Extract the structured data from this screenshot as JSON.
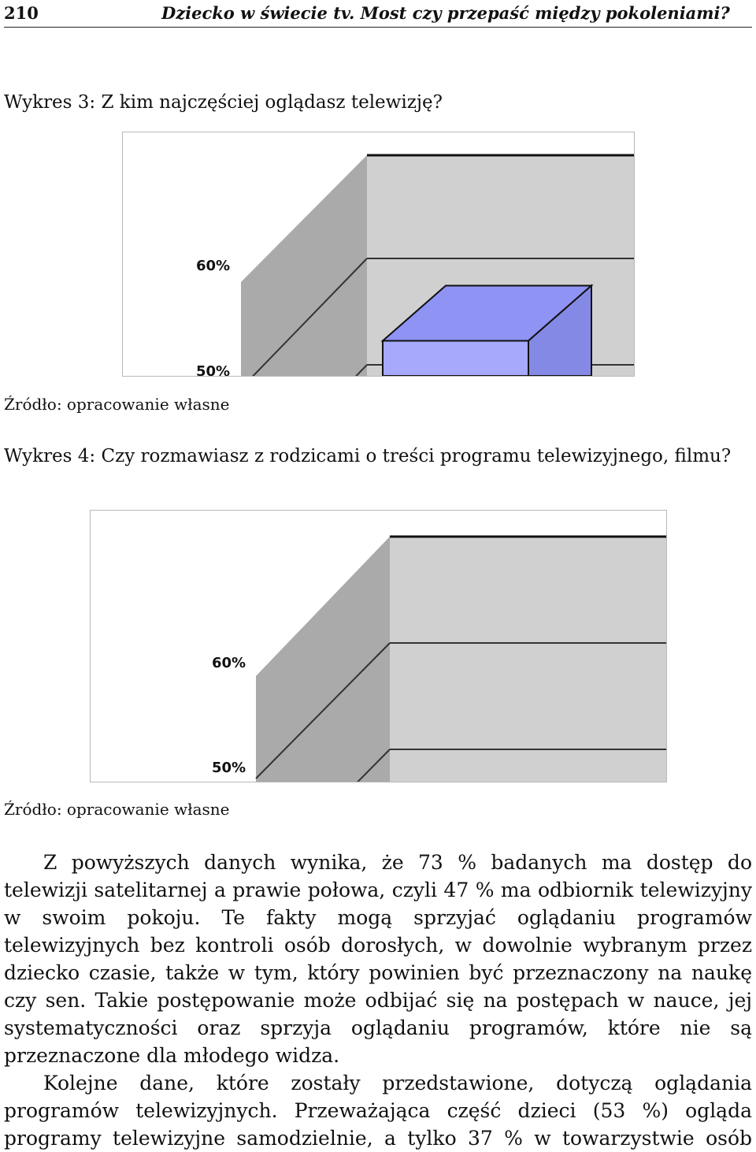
{
  "header": {
    "page_number": "210",
    "running_title": "Dziecko w świecie tv. Most czy przepaść między pokoleniami?"
  },
  "figure3": {
    "caption": "Wykres 3: Z kim najczęściej oglądasz telewizję?",
    "source": "Źródło: opracowanie własne"
  },
  "figure4": {
    "caption": "Wykres 4: Czy rozmawiasz z rodzicami o treści programu telewizyjnego, filmu?",
    "source": "Źródło: opracowanie własne"
  },
  "chart_data": [
    {
      "type": "bar",
      "title": "Wykres 3: Z kim najczęściej oglądasz telewizję?",
      "yticks": [
        "60%",
        "50%"
      ],
      "ylim": [
        50,
        60
      ],
      "categories": [],
      "series": [
        {
          "values": []
        }
      ],
      "visible_bar_top_percent": 57,
      "colors": {
        "bar_front": "#a7a9fd",
        "bar_top": "#8f93f4",
        "bar_side": "#8589e6",
        "wall": "#aaaaaa",
        "back": "#d0d0d0"
      },
      "grid": true
    },
    {
      "type": "bar",
      "title": "Wykres 4: Czy rozmawiasz z rodzicami o treści programu telewizyjnego, filmu?",
      "yticks": [
        "60%",
        "50%"
      ],
      "ylim": [
        50,
        60
      ],
      "categories": [],
      "series": [],
      "colors": {
        "wall": "#aaaaaa",
        "back": "#d0d0d0"
      },
      "grid": true
    }
  ],
  "body": {
    "paragraph1": "Z powyższych danych wynika, że 73 % badanych ma dostęp do telewizji satelitarnej a prawie połowa, czyli 47 % ma odbiornik telewizyjny w swoim pokoju. Te fakty mogą sprzyjać oglądaniu programów telewizyjnych bez kontroli osób dorosłych, w dowolnie wybranym przez dziecko czasie, także w tym, który powinien być przeznaczony na naukę czy sen. Takie postępowanie może odbijać się na postępach w nauce, jej systematyczności oraz sprzyja oglądaniu programów, które nie są przeznaczone dla młodego widza.",
    "paragraph2": "Kolejne dane, które zostały przedstawione, dotyczą oglądania programów telewizyjnych. Przeważająca część dzieci (53 %) ogląda programy telewizyjne samodzielnie, a tylko 37 % w towarzystwie osób"
  }
}
